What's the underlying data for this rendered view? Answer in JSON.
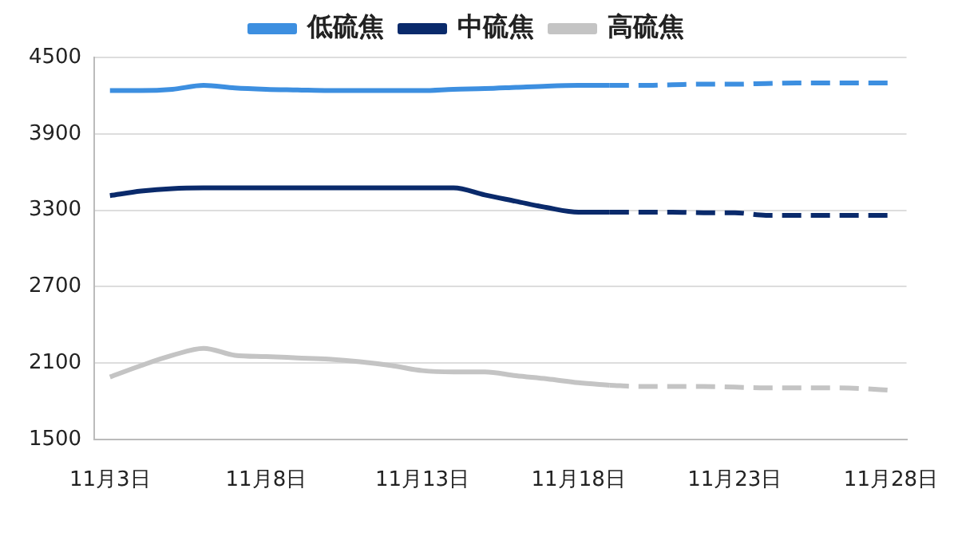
{
  "chart_data": {
    "type": "line",
    "categories": [
      "11月3日",
      null,
      null,
      null,
      null,
      "11月8日",
      null,
      null,
      null,
      null,
      "11月13日",
      null,
      null,
      null,
      null,
      "11月18日",
      null,
      null,
      null,
      null,
      "11月23日",
      null,
      null,
      null,
      null,
      "11月28日"
    ],
    "series": [
      {
        "name": "低硫焦",
        "color": "#3d8fe0",
        "line_style": "solid",
        "values": [
          4240,
          4240,
          4250,
          4280,
          4260,
          4250,
          4245,
          4240,
          4240,
          4240,
          4240,
          4250,
          4255,
          4265,
          4275,
          4280,
          4280,
          null,
          null,
          null,
          null,
          null,
          null,
          null,
          null,
          null
        ]
      },
      {
        "name": "中硫焦",
        "color": "#0a2a6b",
        "line_style": "solid",
        "values": [
          3415,
          3450,
          3470,
          3475,
          3475,
          3475,
          3475,
          3475,
          3475,
          3475,
          3475,
          3475,
          3420,
          3370,
          3320,
          3285,
          3285,
          null,
          null,
          null,
          null,
          null,
          null,
          null,
          null,
          null
        ]
      },
      {
        "name": "高硫焦",
        "color": "#c4c4c4",
        "line_style": "solid",
        "values": [
          1990,
          2080,
          2160,
          2215,
          2160,
          2150,
          2140,
          2130,
          2110,
          2080,
          2040,
          2030,
          2030,
          2000,
          1975,
          1945,
          1925,
          null,
          null,
          null,
          null,
          null,
          null,
          null,
          null,
          null
        ]
      },
      {
        "color": "#3d8fe0",
        "line_style": "dashed",
        "values": [
          null,
          null,
          null,
          null,
          null,
          null,
          null,
          null,
          null,
          null,
          null,
          null,
          null,
          null,
          null,
          null,
          4280,
          4280,
          4285,
          4290,
          4290,
          4295,
          4300,
          4300,
          4300,
          4300
        ]
      },
      {
        "color": "#0a2a6b",
        "line_style": "dashed",
        "values": [
          null,
          null,
          null,
          null,
          null,
          null,
          null,
          null,
          null,
          null,
          null,
          null,
          null,
          null,
          null,
          null,
          3285,
          3285,
          3285,
          3280,
          3280,
          3260,
          3260,
          3260,
          3260,
          3260
        ]
      },
      {
        "color": "#c4c4c4",
        "line_style": "dashed",
        "values": [
          null,
          null,
          null,
          null,
          null,
          null,
          null,
          null,
          null,
          null,
          null,
          null,
          null,
          null,
          null,
          null,
          1925,
          1915,
          1915,
          1915,
          1910,
          1905,
          1905,
          1905,
          1900,
          1885
        ]
      }
    ],
    "ylim": [
      1500,
      4500
    ],
    "yticks": [
      1500,
      2100,
      2700,
      3300,
      3900,
      4500
    ],
    "grid": "y",
    "legend": "top",
    "marker": "none"
  }
}
